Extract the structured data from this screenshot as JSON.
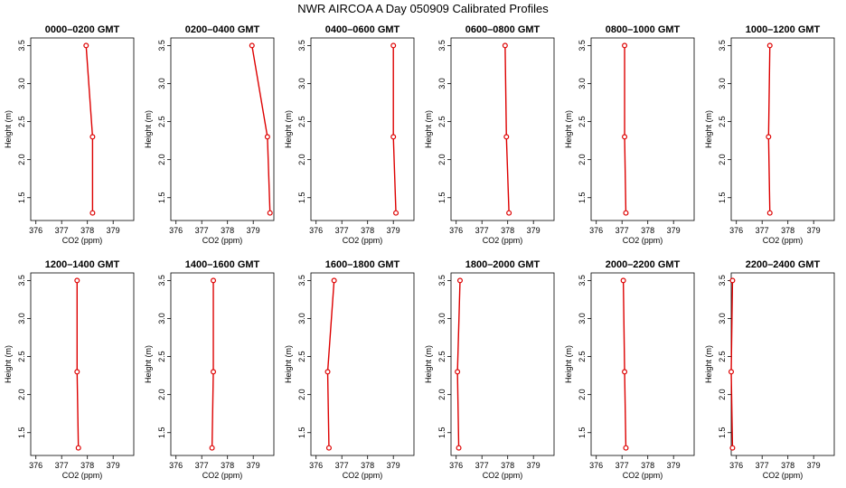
{
  "title": "NWR AIRCOA A  Day 050909  Calibrated Profiles",
  "chart_data": [
    {
      "type": "line",
      "title": "0000–0200 GMT",
      "xlabel": "CO2 (ppm)",
      "ylabel": "Height (m)",
      "x_ticks": [
        "376",
        "377",
        "378",
        "379"
      ],
      "y_ticks": [
        "1.5",
        "2.0",
        "2.5",
        "3.0",
        "3.5"
      ],
      "xlim": [
        375.8,
        379.8
      ],
      "ylim": [
        1.2,
        3.6
      ],
      "series": [
        {
          "x": [
            378.2,
            378.2,
            377.95
          ],
          "y": [
            1.3,
            2.3,
            3.5
          ]
        }
      ]
    },
    {
      "type": "line",
      "title": "0200–0400 GMT",
      "xlabel": "CO2 (ppm)",
      "ylabel": "Height (m)",
      "x_ticks": [
        "376",
        "377",
        "378",
        "379"
      ],
      "y_ticks": [
        "1.5",
        "2.0",
        "2.5",
        "3.0",
        "3.5"
      ],
      "xlim": [
        375.8,
        379.8
      ],
      "ylim": [
        1.2,
        3.6
      ],
      "series": [
        {
          "x": [
            379.65,
            379.55,
            378.95
          ],
          "y": [
            1.3,
            2.3,
            3.5
          ]
        }
      ]
    },
    {
      "type": "line",
      "title": "0400–0600 GMT",
      "xlabel": "CO2 (ppm)",
      "ylabel": "Height (m)",
      "x_ticks": [
        "376",
        "377",
        "378",
        "379"
      ],
      "y_ticks": [
        "1.5",
        "2.0",
        "2.5",
        "3.0",
        "3.5"
      ],
      "xlim": [
        375.8,
        379.8
      ],
      "ylim": [
        1.2,
        3.6
      ],
      "series": [
        {
          "x": [
            379.1,
            379.0,
            379.0
          ],
          "y": [
            1.3,
            2.3,
            3.5
          ]
        }
      ]
    },
    {
      "type": "line",
      "title": "0600–0800 GMT",
      "xlabel": "CO2 (ppm)",
      "ylabel": "Height (m)",
      "x_ticks": [
        "376",
        "377",
        "378",
        "379"
      ],
      "y_ticks": [
        "1.5",
        "2.0",
        "2.5",
        "3.0",
        "3.5"
      ],
      "xlim": [
        375.8,
        379.8
      ],
      "ylim": [
        1.2,
        3.6
      ],
      "series": [
        {
          "x": [
            378.05,
            377.95,
            377.9
          ],
          "y": [
            1.3,
            2.3,
            3.5
          ]
        }
      ]
    },
    {
      "type": "line",
      "title": "0800–1000 GMT",
      "xlabel": "CO2 (ppm)",
      "ylabel": "Height (m)",
      "x_ticks": [
        "376",
        "377",
        "378",
        "379"
      ],
      "y_ticks": [
        "1.5",
        "2.0",
        "2.5",
        "3.0",
        "3.5"
      ],
      "xlim": [
        375.8,
        379.8
      ],
      "ylim": [
        1.2,
        3.6
      ],
      "series": [
        {
          "x": [
            377.15,
            377.1,
            377.1
          ],
          "y": [
            1.3,
            2.3,
            3.5
          ]
        }
      ]
    },
    {
      "type": "line",
      "title": "1000–1200 GMT",
      "xlabel": "CO2 (ppm)",
      "ylabel": "Height (m)",
      "x_ticks": [
        "376",
        "377",
        "378",
        "379"
      ],
      "y_ticks": [
        "1.5",
        "2.0",
        "2.5",
        "3.0",
        "3.5"
      ],
      "xlim": [
        375.8,
        379.8
      ],
      "ylim": [
        1.2,
        3.6
      ],
      "series": [
        {
          "x": [
            377.3,
            377.25,
            377.3
          ],
          "y": [
            1.3,
            2.3,
            3.5
          ]
        }
      ]
    },
    {
      "type": "line",
      "title": "1200–1400 GMT",
      "xlabel": "CO2 (ppm)",
      "ylabel": "Height (m)",
      "x_ticks": [
        "376",
        "377",
        "378",
        "379"
      ],
      "y_ticks": [
        "1.5",
        "2.0",
        "2.5",
        "3.0",
        "3.5"
      ],
      "xlim": [
        375.8,
        379.8
      ],
      "ylim": [
        1.2,
        3.6
      ],
      "series": [
        {
          "x": [
            377.65,
            377.6,
            377.6
          ],
          "y": [
            1.3,
            2.3,
            3.5
          ]
        }
      ]
    },
    {
      "type": "line",
      "title": "1400–1600 GMT",
      "xlabel": "CO2 (ppm)",
      "ylabel": "Height (m)",
      "x_ticks": [
        "376",
        "377",
        "378",
        "379"
      ],
      "y_ticks": [
        "1.5",
        "2.0",
        "2.5",
        "3.0",
        "3.5"
      ],
      "xlim": [
        375.8,
        379.8
      ],
      "ylim": [
        1.2,
        3.6
      ],
      "series": [
        {
          "x": [
            377.4,
            377.45,
            377.45
          ],
          "y": [
            1.3,
            2.3,
            3.5
          ]
        }
      ]
    },
    {
      "type": "line",
      "title": "1600–1800 GMT",
      "xlabel": "CO2 (ppm)",
      "ylabel": "Height (m)",
      "x_ticks": [
        "376",
        "377",
        "378",
        "379"
      ],
      "y_ticks": [
        "1.5",
        "2.0",
        "2.5",
        "3.0",
        "3.5"
      ],
      "xlim": [
        375.8,
        379.8
      ],
      "ylim": [
        1.2,
        3.6
      ],
      "series": [
        {
          "x": [
            376.5,
            376.45,
            376.7
          ],
          "y": [
            1.3,
            2.3,
            3.5
          ]
        }
      ]
    },
    {
      "type": "line",
      "title": "1800–2000 GMT",
      "xlabel": "CO2 (ppm)",
      "ylabel": "Height (m)",
      "x_ticks": [
        "376",
        "377",
        "378",
        "379"
      ],
      "y_ticks": [
        "1.5",
        "2.0",
        "2.5",
        "3.0",
        "3.5"
      ],
      "xlim": [
        375.8,
        379.8
      ],
      "ylim": [
        1.2,
        3.6
      ],
      "series": [
        {
          "x": [
            376.1,
            376.05,
            376.15
          ],
          "y": [
            1.3,
            2.3,
            3.5
          ]
        }
      ]
    },
    {
      "type": "line",
      "title": "2000–2200 GMT",
      "xlabel": "CO2 (ppm)",
      "ylabel": "Height (m)",
      "x_ticks": [
        "376",
        "377",
        "378",
        "379"
      ],
      "y_ticks": [
        "1.5",
        "2.0",
        "2.5",
        "3.0",
        "3.5"
      ],
      "xlim": [
        375.8,
        379.8
      ],
      "ylim": [
        1.2,
        3.6
      ],
      "series": [
        {
          "x": [
            377.15,
            377.1,
            377.05
          ],
          "y": [
            1.3,
            2.3,
            3.5
          ]
        }
      ]
    },
    {
      "type": "line",
      "title": "2200–2400 GMT",
      "xlabel": "CO2 (ppm)",
      "ylabel": "Height (m)",
      "x_ticks": [
        "376",
        "377",
        "378",
        "379"
      ],
      "y_ticks": [
        "1.5",
        "2.0",
        "2.5",
        "3.0",
        "3.5"
      ],
      "xlim": [
        375.8,
        379.8
      ],
      "ylim": [
        1.2,
        3.6
      ],
      "series": [
        {
          "x": [
            375.85,
            375.8,
            375.85
          ],
          "y": [
            1.3,
            2.3,
            3.5
          ]
        }
      ]
    }
  ],
  "colors": {
    "line": "#dd0000",
    "point": "#dd0000",
    "axis": "#000000"
  }
}
